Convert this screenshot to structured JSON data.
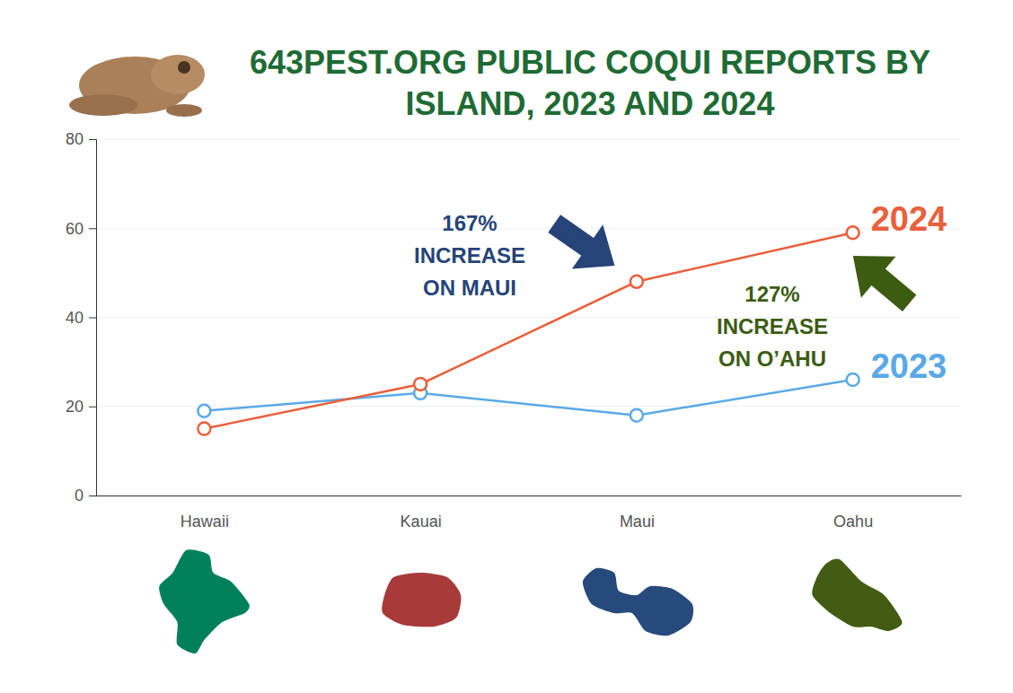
{
  "chart_data": {
    "type": "line",
    "title": "643PEST.ORG PUBLIC COQUI REPORTS BY ISLAND, 2023 AND 2024",
    "categories": [
      "Hawaii",
      "Kauai",
      "Maui",
      "Oahu"
    ],
    "series": [
      {
        "name": "2023",
        "color": "#5aa9e6",
        "values": [
          19,
          23,
          18,
          26
        ]
      },
      {
        "name": "2024",
        "color": "#e8603c",
        "values": [
          15,
          25,
          48,
          59
        ]
      }
    ],
    "ylim": [
      0,
      80
    ],
    "yticks": [
      0,
      20,
      40,
      60,
      80
    ],
    "grid": true,
    "marker": "circle",
    "annotations": [
      {
        "text": "167% INCREASE ON MAUI",
        "color": "#264478"
      },
      {
        "text": "127% INCREASE ON O’AHU",
        "color": "#3d5c12"
      }
    ]
  }
}
